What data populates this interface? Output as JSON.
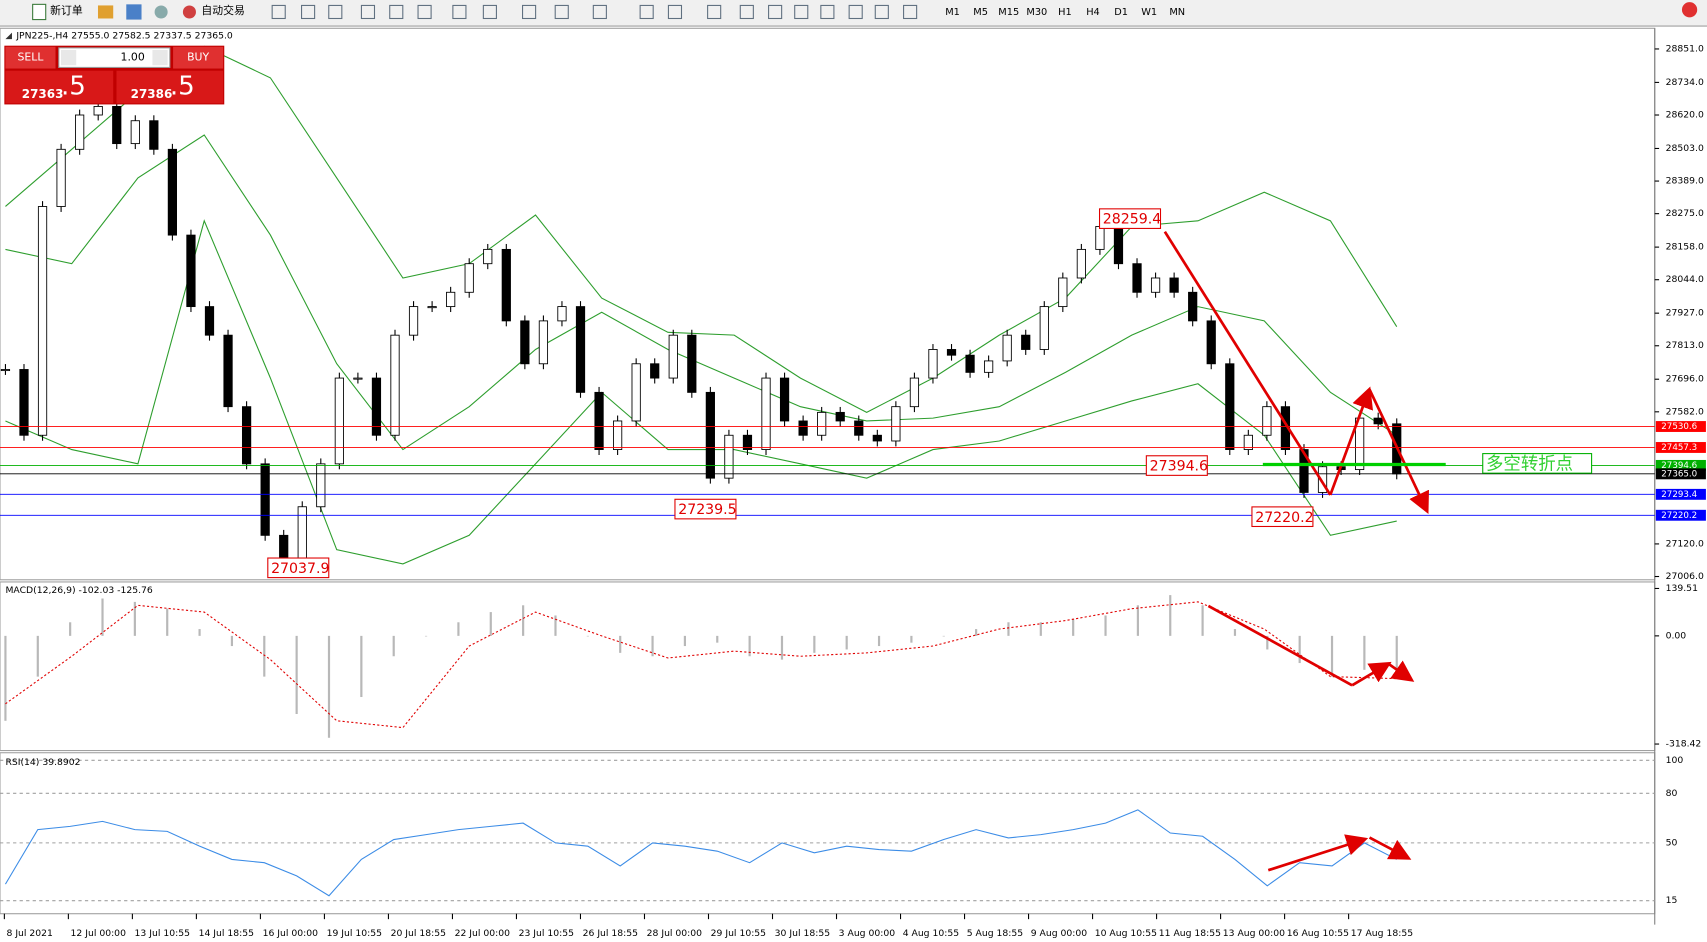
{
  "toolbar": {
    "new_order": "新订单",
    "auto_trading": "自动交易",
    "timeframes": [
      "M1",
      "M5",
      "M15",
      "M30",
      "H1",
      "H4",
      "D1",
      "W1",
      "MN"
    ]
  },
  "trade_panel": {
    "sell": "SELL",
    "volume": "1.00",
    "buy": "BUY",
    "bid_main": "27363",
    "bid_frac": ".5",
    "ask_main": "27386",
    "ask_frac": ".5"
  },
  "x_axis_labels": [
    "8 Jul 2021",
    "12 Jul 00:00",
    "13 Jul 10:55",
    "14 Jul 18:55",
    "16 Jul 00:00",
    "19 Jul 10:55",
    "20 Jul 18:55",
    "22 Jul 00:00",
    "23 Jul 10:55",
    "26 Jul 18:55",
    "28 Jul 00:00",
    "29 Jul 10:55",
    "30 Jul 18:55",
    "3 Aug 00:00",
    "4 Aug 10:55",
    "5 Aug 18:55",
    "9 Aug 00:00",
    "10 Aug 10:55",
    "11 Aug 18:55",
    "13 Aug 00:00",
    "16 Aug 10:55",
    "17 Aug 18:55"
  ],
  "chart_data": [
    {
      "type": "candlestick",
      "title": "JPN225-,H4  27555.0 27582.5 27337.5 27365.0",
      "close": [
        27730,
        27500,
        28300,
        28500,
        28620,
        28650,
        28520,
        28600,
        28500,
        28200,
        27950,
        27850,
        27600,
        27400,
        27150,
        27050,
        27250,
        27400,
        27700,
        27700,
        27500,
        27850,
        27950,
        27950,
        28000,
        28100,
        28150,
        27900,
        27750,
        27900,
        27950,
        27650,
        27450,
        27550,
        27750,
        27700,
        27850,
        27650,
        27350,
        27500,
        27450,
        27700,
        27550,
        27500,
        27580,
        27550,
        27500,
        27480,
        27600,
        27700,
        27800,
        27780,
        27720,
        27760,
        27850,
        27800,
        27950,
        28050,
        28150,
        28230,
        28100,
        28000,
        28050,
        28000,
        27900,
        27750,
        27450,
        27500,
        27600,
        27450,
        27300,
        27390,
        27380,
        27560,
        27540,
        27365
      ],
      "bands": [
        {
          "name": "upper",
          "color": "#2e9e2e",
          "values": [
            28300,
            28500,
            28700,
            28860,
            28750,
            28400,
            28050,
            28100,
            28270,
            27980,
            27860,
            27850,
            27700,
            27580,
            27700,
            27850,
            27980,
            28230,
            28250,
            28350,
            28250,
            27880
          ]
        },
        {
          "name": "middle",
          "color": "#2e9e2e",
          "values": [
            28150,
            28100,
            28400,
            28550,
            28200,
            27750,
            27450,
            27600,
            27800,
            27930,
            27800,
            27700,
            27600,
            27550,
            27560,
            27600,
            27720,
            27850,
            27950,
            27900,
            27650,
            27500
          ]
        },
        {
          "name": "lower",
          "color": "#2e9e2e",
          "values": [
            27550,
            27450,
            27400,
            28250,
            27700,
            27100,
            27050,
            27150,
            27400,
            27650,
            27450,
            27450,
            27400,
            27350,
            27450,
            27480,
            27550,
            27620,
            27680,
            27500,
            27150,
            27200
          ]
        }
      ],
      "ylim": [
        26994.6,
        28919.5
      ],
      "yticks": [
        {
          "value": 28851,
          "label": "28851.0"
        },
        {
          "value": 28734,
          "label": "28734.0"
        },
        {
          "value": 28620,
          "label": "28620.0"
        },
        {
          "value": 28503,
          "label": "28503.0"
        },
        {
          "value": 28389,
          "label": "28389.0"
        },
        {
          "value": 28275,
          "label": "28275.0"
        },
        {
          "value": 28158,
          "label": "28158.0"
        },
        {
          "value": 28044,
          "label": "28044.0"
        },
        {
          "value": 27927,
          "label": "27927.0"
        },
        {
          "value": 27813,
          "label": "27813.0"
        },
        {
          "value": 27696,
          "label": "27696.0"
        },
        {
          "value": 27582,
          "label": "27582.0"
        },
        {
          "value": 27120,
          "label": "27120.0"
        },
        {
          "value": 27006,
          "label": "27006.0"
        }
      ],
      "levels": [
        {
          "price": 27530.6,
          "color": "#ff0000"
        },
        {
          "price": 27457.3,
          "color": "#ff0000"
        },
        {
          "price": 27394.6,
          "color": "#00b000"
        },
        {
          "price": 27365,
          "label": "27365.0",
          "color": "#000000"
        },
        {
          "price": 27293.4,
          "color": "#0000ff"
        },
        {
          "price": 27220.2,
          "color": "#0000ff"
        }
      ],
      "annotations": [
        {
          "value": 28259.4
        },
        {
          "value": 27394.6
        },
        {
          "value": 27239.5
        },
        {
          "value": 27037.9
        },
        {
          "value": 27220.2
        },
        {
          "text": "多空转折点"
        }
      ]
    },
    {
      "type": "macd",
      "title": "MACD(12,26,9) -102.03 -125.76",
      "histogram": [
        -250,
        -120,
        40,
        110,
        100,
        80,
        20,
        -30,
        -120,
        -230,
        -300,
        -180,
        -60,
        0,
        40,
        70,
        90,
        60,
        0,
        -50,
        -60,
        -30,
        -20,
        -60,
        -70,
        -50,
        -40,
        -30,
        -20,
        0,
        20,
        40,
        40,
        50,
        60,
        90,
        120,
        90,
        20,
        -40,
        -80,
        -120,
        -100,
        -102
      ],
      "signal": [
        -200,
        -60,
        90,
        70,
        -70,
        -250,
        -270,
        -30,
        70,
        0,
        -65,
        -45,
        -60,
        -50,
        -30,
        20,
        45,
        80,
        100,
        20,
        -120,
        -126
      ],
      "ylim": [
        -337.6,
        158.7
      ],
      "yticks": [
        139.51,
        {
          "value": 0,
          "label": "0.00"
        },
        -318.42
      ]
    },
    {
      "type": "rsi",
      "title": "RSI(14) 39.8902",
      "values": [
        25,
        58,
        60,
        63,
        58,
        57,
        48,
        40,
        38,
        30,
        18,
        40,
        52,
        55,
        58,
        60,
        62,
        50,
        48,
        36,
        50,
        48,
        45,
        38,
        50,
        44,
        48,
        46,
        45,
        52,
        58,
        53,
        55,
        58,
        62,
        70,
        56,
        54,
        40,
        24,
        38,
        36,
        50,
        40
      ],
      "ylim": [
        7.1,
        104.6
      ],
      "yticks": [
        100,
        80,
        50,
        15
      ],
      "grid": true
    }
  ]
}
